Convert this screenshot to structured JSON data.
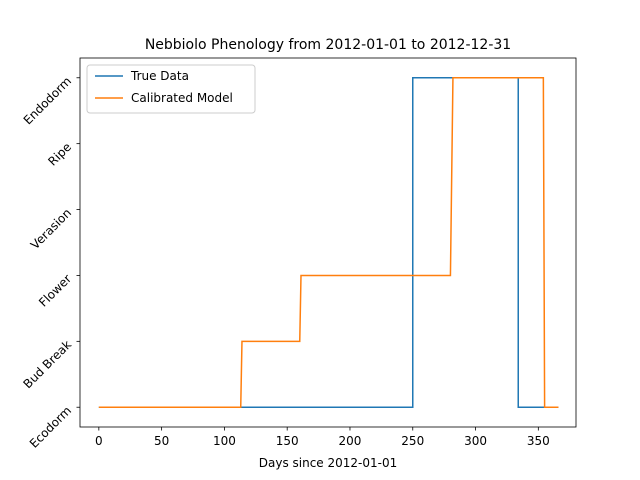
{
  "chart_data": {
    "type": "line",
    "title": "Nebbiolo Phenology from 2012-01-01 to 2012-12-31",
    "xlabel": "Days since 2012-01-01",
    "ylabel": "",
    "xlim": [
      -15,
      380
    ],
    "ylim": [
      -0.3,
      5.3
    ],
    "xticks": [
      0,
      50,
      100,
      150,
      200,
      250,
      300,
      350
    ],
    "yticks": [
      0,
      1,
      2,
      3,
      4,
      5
    ],
    "ytick_labels": [
      "Ecodorm",
      "Bud Break",
      "Flower",
      "Verasion",
      "Ripe",
      "Endodorm"
    ],
    "grid": false,
    "legend_position": "top-left",
    "series": [
      {
        "name": "True Data",
        "color": "#1f77b4",
        "x": [
          0,
          250,
          250,
          334,
          334,
          366
        ],
        "y": [
          0,
          0,
          5,
          5,
          0,
          0
        ]
      },
      {
        "name": "Calibrated Model",
        "color": "#ff7f0e",
        "x": [
          0,
          113,
          114,
          160,
          161,
          280,
          282,
          354,
          355,
          366
        ],
        "y": [
          0,
          0,
          1,
          1,
          2,
          2,
          5,
          5,
          0,
          0
        ]
      }
    ]
  }
}
